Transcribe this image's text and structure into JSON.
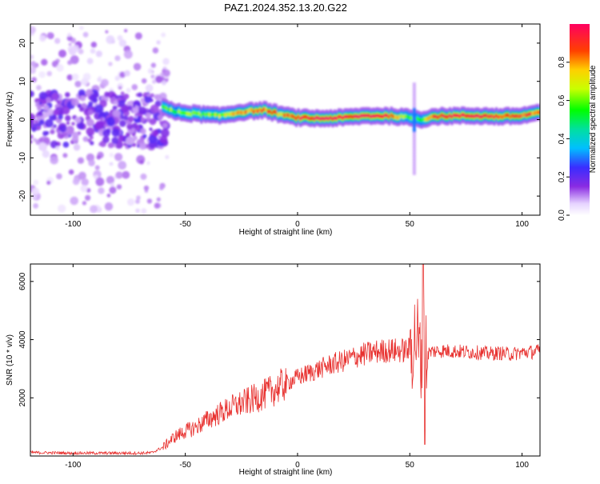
{
  "title": "PAZ1.2024.352.13.20.G22",
  "chart_data": [
    {
      "type": "heatmap",
      "xlabel": "Height of straight line (km)",
      "ylabel": "Frequency (Hz)",
      "xlim": [
        -119,
        108
      ],
      "ylim": [
        -25,
        25
      ],
      "x_ticks": [
        -100,
        -50,
        0,
        50,
        100
      ],
      "y_ticks": [
        -20,
        -10,
        0,
        10,
        20
      ],
      "colorbar": {
        "label": "Normalized spectral amplitude",
        "range": [
          0.0,
          1.0
        ],
        "ticks": [
          0.0,
          0.2,
          0.4,
          0.6,
          0.8
        ],
        "tick_labels": [
          "0.0",
          "0.2",
          "0.4",
          "0.6",
          "0.8"
        ]
      },
      "ridge": {
        "description_x_km": [
          -60,
          -55,
          -45,
          -35,
          -25,
          -15,
          -5,
          0,
          10,
          20,
          30,
          40,
          50,
          55,
          60,
          70,
          80,
          90,
          100,
          108
        ],
        "frequency_hz": [
          3.5,
          2.0,
          1.5,
          1.0,
          2.0,
          2.5,
          1.0,
          0.5,
          0.3,
          0.5,
          1.0,
          1.0,
          0.5,
          0.0,
          0.8,
          1.0,
          1.0,
          0.8,
          1.0,
          2.0
        ],
        "peak_amplitude": [
          0.6,
          0.55,
          0.6,
          0.65,
          0.8,
          0.85,
          0.75,
          0.95,
          0.95,
          0.98,
          0.98,
          0.95,
          0.6,
          0.5,
          0.9,
          0.95,
          0.95,
          0.9,
          0.9,
          0.8
        ]
      }
    },
    {
      "type": "line",
      "xlabel": "Height of straight line (km)",
      "ylabel": "SNR (10 * v/v)",
      "xlim": [
        -119,
        108
      ],
      "ylim": [
        0,
        6600
      ],
      "x_ticks": [
        -100,
        -50,
        0,
        50,
        100
      ],
      "y_ticks": [
        2000,
        4000,
        6000
      ],
      "color": "#e8312f",
      "series": [
        {
          "x": [
            -119,
            -110,
            -100,
            -90,
            -80,
            -70,
            -65,
            -60,
            -55,
            -50,
            -45,
            -40,
            -35,
            -30,
            -25,
            -20,
            -15,
            -10,
            -5,
            0,
            5,
            10,
            15,
            20,
            25,
            30,
            35,
            40,
            45,
            50,
            53,
            55,
            56,
            57,
            60,
            65,
            70,
            75,
            80,
            85,
            90,
            95,
            100,
            105,
            108
          ],
          "values": [
            120,
            110,
            100,
            100,
            100,
            100,
            110,
            300,
            650,
            850,
            1000,
            1250,
            1450,
            1650,
            1800,
            1950,
            2100,
            2300,
            2500,
            2700,
            2850,
            3000,
            3150,
            3250,
            3400,
            3500,
            3580,
            3630,
            3620,
            3650,
            4200,
            3200,
            5000,
            3500,
            3600,
            3620,
            3600,
            3580,
            3560,
            3520,
            3540,
            3500,
            3560,
            3580,
            3600
          ]
        }
      ]
    }
  ]
}
